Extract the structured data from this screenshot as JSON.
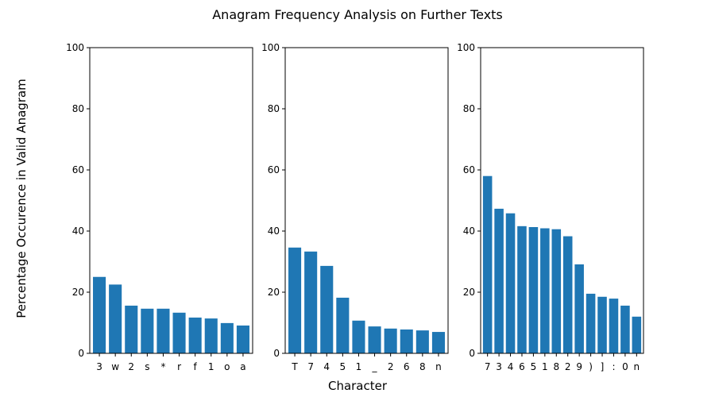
{
  "figure": {
    "title": "Anagram Frequency Analysis on Further Texts",
    "ylabel": "Percentage Occurence in Valid Anagram",
    "xlabel": "Character"
  },
  "chart_data": [
    {
      "type": "bar",
      "categories": [
        "3",
        "w",
        "2",
        "s",
        "*",
        "r",
        "f",
        "1",
        "o",
        "a"
      ],
      "values": [
        25.0,
        22.5,
        15.6,
        14.6,
        14.6,
        13.3,
        11.7,
        11.4,
        9.9,
        9.1
      ],
      "ylim": [
        0,
        100
      ],
      "yticks": [
        0,
        20,
        40,
        60,
        80,
        100
      ],
      "color": "#1f77b4",
      "grid": false
    },
    {
      "type": "bar",
      "categories": [
        "T",
        "7",
        "4",
        "5",
        "1",
        "_",
        "2",
        "6",
        "8",
        "n"
      ],
      "values": [
        34.6,
        33.3,
        28.6,
        18.2,
        10.7,
        8.8,
        8.1,
        7.8,
        7.5,
        7.0
      ],
      "ylim": [
        0,
        100
      ],
      "yticks": [
        0,
        20,
        40,
        60,
        80,
        100
      ],
      "color": "#1f77b4",
      "grid": false
    },
    {
      "type": "bar",
      "categories": [
        "7",
        "3",
        "4",
        "6",
        "5",
        "1",
        "8",
        "2",
        "9",
        ")",
        "]",
        ":",
        "0",
        "n"
      ],
      "values": [
        58.0,
        47.3,
        45.8,
        41.6,
        41.3,
        40.9,
        40.6,
        38.3,
        29.1,
        19.5,
        18.5,
        17.9,
        15.6,
        12.0
      ],
      "ylim": [
        0,
        100
      ],
      "yticks": [
        0,
        20,
        40,
        60,
        80,
        100
      ],
      "color": "#1f77b4",
      "grid": false
    }
  ]
}
